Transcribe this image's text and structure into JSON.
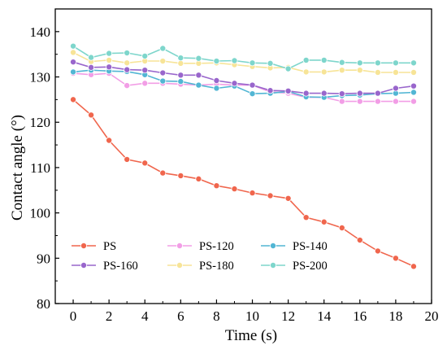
{
  "chart_data": {
    "type": "line",
    "xlabel": "Time (s)",
    "ylabel": "Contact angle (°)",
    "xlim": [
      -1,
      20
    ],
    "ylim": [
      80,
      145
    ],
    "xticks": [
      0,
      2,
      4,
      6,
      8,
      10,
      12,
      14,
      16,
      18,
      20
    ],
    "yticks": [
      80,
      90,
      100,
      110,
      120,
      130,
      140
    ],
    "grid": false,
    "legend_position": "bottom-inside",
    "x": [
      0,
      1,
      2,
      3,
      4,
      5,
      6,
      7,
      8,
      9,
      10,
      11,
      12,
      13,
      14,
      15,
      16,
      17,
      18,
      19
    ],
    "series": [
      {
        "name": "PS",
        "color": "#f0664d",
        "values": [
          125.0,
          121.6,
          116.0,
          111.8,
          111.0,
          108.8,
          108.2,
          107.5,
          106.0,
          105.3,
          104.4,
          103.8,
          103.2,
          99.0,
          98.0,
          96.7,
          94.0,
          91.6,
          90.0,
          88.2
        ]
      },
      {
        "name": "PS-120",
        "color": "#f29ee6",
        "values": [
          130.8,
          130.5,
          130.8,
          128.1,
          128.6,
          128.6,
          128.4,
          128.2,
          128.4,
          128.2,
          128.2,
          126.7,
          126.4,
          125.5,
          125.5,
          124.6,
          124.6,
          124.6,
          124.6,
          124.6
        ]
      },
      {
        "name": "PS-140",
        "color": "#52b6d4",
        "values": [
          131.1,
          131.5,
          131.3,
          131.2,
          130.5,
          129.1,
          129.0,
          128.2,
          127.5,
          128.0,
          126.3,
          126.4,
          126.8,
          125.6,
          125.5,
          125.9,
          126.0,
          126.3,
          126.4,
          126.6
        ]
      },
      {
        "name": "PS-160",
        "color": "#9966cc",
        "values": [
          133.3,
          132.1,
          132.2,
          131.6,
          131.5,
          130.9,
          130.4,
          130.4,
          129.2,
          128.6,
          128.2,
          127.0,
          126.9,
          126.4,
          126.4,
          126.3,
          126.4,
          126.4,
          127.5,
          128.0
        ]
      },
      {
        "name": "PS-180",
        "color": "#f7e497",
        "values": [
          135.4,
          133.4,
          133.7,
          133.1,
          133.5,
          133.5,
          133.0,
          133.0,
          133.1,
          132.7,
          132.3,
          132.0,
          132.1,
          131.1,
          131.1,
          131.5,
          131.5,
          131.0,
          131.0,
          131.0
        ]
      },
      {
        "name": "PS-200",
        "color": "#7ed6cc",
        "values": [
          136.8,
          134.3,
          135.2,
          135.3,
          134.6,
          136.3,
          134.2,
          134.1,
          133.5,
          133.6,
          133.1,
          133.0,
          131.8,
          133.7,
          133.7,
          133.2,
          133.1,
          133.1,
          133.1,
          133.1
        ]
      }
    ]
  }
}
